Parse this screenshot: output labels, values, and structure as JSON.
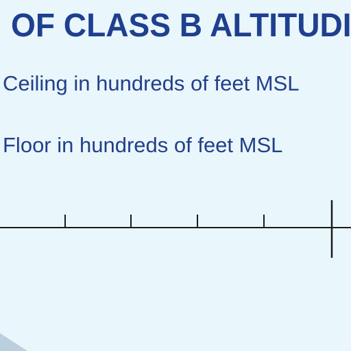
{
  "title": "OF CLASS B ALTITUDI",
  "labels": {
    "ceiling": "Ceiling in hundreds of feet MSL",
    "floor": "Floor in hundreds of feet MSL"
  },
  "colors": {
    "background": "#e9f6fb",
    "text": "#233f8a",
    "line": "#1a1a1a"
  }
}
